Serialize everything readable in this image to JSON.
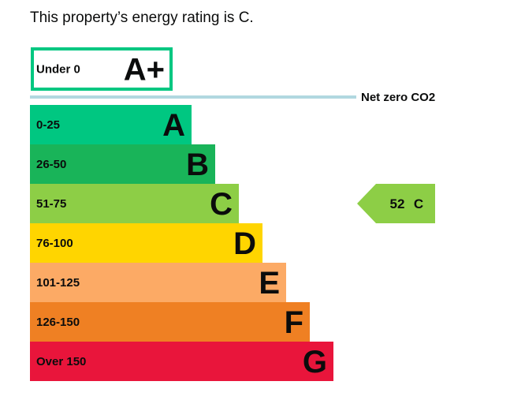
{
  "heading": "This property’s energy rating is C.",
  "chart_data": {
    "type": "bar",
    "bands": [
      {
        "range": "Under 0",
        "letter": "A+",
        "color": "#ffffff",
        "border": "#00c781",
        "text_color": "#0b0c0c",
        "letter_color": "#0b0c0c"
      },
      {
        "range": "0-25",
        "letter": "A",
        "color": "#00c781",
        "text_color": "#0b0c0c",
        "letter_color": "#0b0c0c"
      },
      {
        "range": "26-50",
        "letter": "B",
        "color": "#19b459",
        "text_color": "#0b0c0c",
        "letter_color": "#0b0c0c"
      },
      {
        "range": "51-75",
        "letter": "C",
        "color": "#8dce46",
        "text_color": "#0b0c0c",
        "letter_color": "#0b0c0c"
      },
      {
        "range": "76-100",
        "letter": "D",
        "color": "#ffd500",
        "text_color": "#0b0c0c",
        "letter_color": "#0b0c0c"
      },
      {
        "range": "101-125",
        "letter": "E",
        "color": "#fcaa65",
        "text_color": "#0b0c0c",
        "letter_color": "#0b0c0c"
      },
      {
        "range": "126-150",
        "letter": "F",
        "color": "#ef8023",
        "text_color": "#0b0c0c",
        "letter_color": "#0b0c0c"
      },
      {
        "range": "Over 150",
        "letter": "G",
        "color": "#e9153b",
        "text_color": "#0b0c0c",
        "letter_color": "#0b0c0c"
      }
    ],
    "net_zero": {
      "label": "Net zero CO2",
      "line_color": "#b1d8e0"
    },
    "current": {
      "score": "52",
      "letter": "C",
      "band_index": 3,
      "color": "#8dce46"
    }
  }
}
